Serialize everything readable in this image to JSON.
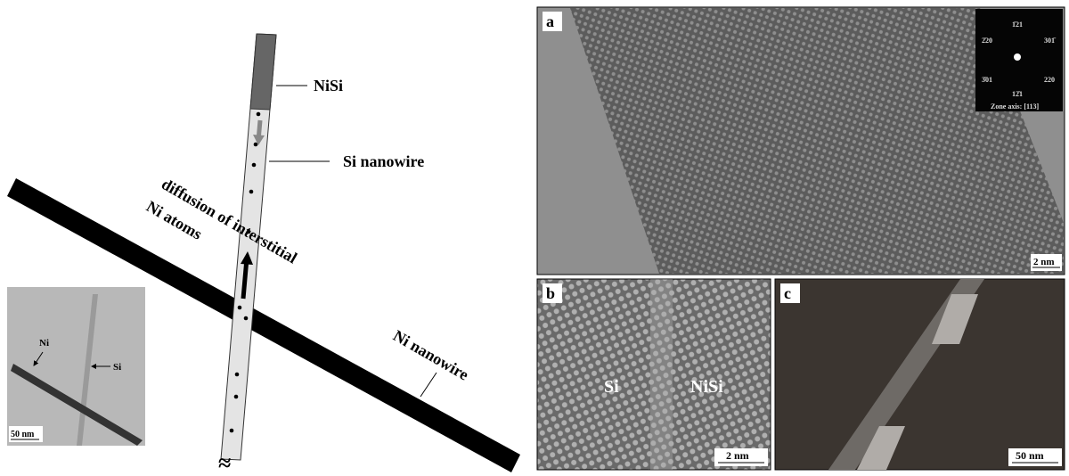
{
  "diagram": {
    "nisi": "NiSi",
    "si_nanowire": "Si nanowire",
    "diffusion": "diffusion of interstitial",
    "ni_atoms": "Ni atoms",
    "ni_nanowire": "Ni nanowire",
    "break": "≈"
  },
  "inset": {
    "ni": "Ni",
    "si": "Si",
    "scale": "50 nm"
  },
  "panels": [
    {
      "label": "a",
      "scale": "2 nm",
      "diffraction": {
        "spots": [
          "1̄21",
          "301̄",
          "2̄20",
          "3̄01",
          "220",
          "12̄1"
        ],
        "zone_axis": "Zone axis: [113]"
      }
    },
    {
      "label": "b",
      "scale": "2 nm",
      "regions": [
        "Si",
        "NiSi"
      ]
    },
    {
      "label": "c",
      "scale": "50 nm"
    }
  ]
}
